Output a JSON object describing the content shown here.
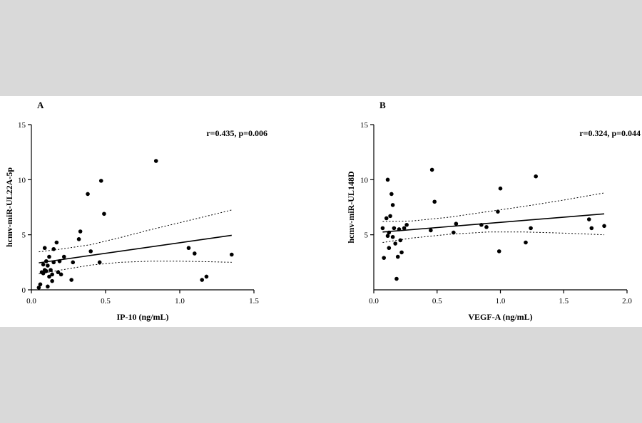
{
  "chart_data": [
    {
      "type": "scatter",
      "panel_label": "A",
      "annotation": "r=0.435, p=0.006",
      "xlabel": "IP-10 (ng/mL)",
      "ylabel": "hcmv-miR-UL22A-5p",
      "xlim": [
        0,
        1.5
      ],
      "ylim": [
        0,
        15
      ],
      "xticks": [
        0,
        0.5,
        1,
        1.5
      ],
      "xtick_labels": [
        "0.0",
        "0.5",
        "1.0",
        "1.5"
      ],
      "yticks": [
        0,
        5,
        10,
        15
      ],
      "ytick_labels": [
        "0",
        "5",
        "10",
        "15"
      ],
      "points": [
        [
          0.05,
          0.2
        ],
        [
          0.06,
          0.5
        ],
        [
          0.07,
          1.6
        ],
        [
          0.08,
          2.3
        ],
        [
          0.08,
          1.5
        ],
        [
          0.09,
          1.8
        ],
        [
          0.09,
          3.8
        ],
        [
          0.1,
          2.6
        ],
        [
          0.1,
          1.7
        ],
        [
          0.11,
          0.3
        ],
        [
          0.11,
          2.2
        ],
        [
          0.12,
          3.0
        ],
        [
          0.12,
          1.2
        ],
        [
          0.13,
          1.8
        ],
        [
          0.14,
          1.4
        ],
        [
          0.14,
          0.8
        ],
        [
          0.15,
          3.7
        ],
        [
          0.15,
          2.5
        ],
        [
          0.17,
          4.3
        ],
        [
          0.18,
          1.6
        ],
        [
          0.19,
          2.6
        ],
        [
          0.2,
          1.4
        ],
        [
          0.22,
          3.0
        ],
        [
          0.27,
          0.9
        ],
        [
          0.28,
          2.5
        ],
        [
          0.32,
          4.6
        ],
        [
          0.33,
          5.3
        ],
        [
          0.38,
          8.7
        ],
        [
          0.4,
          3.5
        ],
        [
          0.46,
          2.5
        ],
        [
          0.47,
          9.9
        ],
        [
          0.49,
          6.9
        ],
        [
          0.84,
          11.7
        ],
        [
          1.06,
          3.8
        ],
        [
          1.1,
          3.3
        ],
        [
          1.15,
          0.9
        ],
        [
          1.18,
          1.2
        ],
        [
          1.35,
          3.2
        ]
      ],
      "fit": {
        "x": [
          0.05,
          1.35
        ],
        "y": [
          2.45,
          4.95
        ]
      },
      "ci_upper": {
        "x": [
          0.05,
          0.2,
          0.4,
          0.6,
          0.8,
          1.0,
          1.2,
          1.35
        ],
        "y": [
          3.45,
          3.7,
          4.1,
          4.75,
          5.45,
          6.1,
          6.75,
          7.25
        ]
      },
      "ci_lower": {
        "x": [
          0.05,
          0.2,
          0.4,
          0.6,
          0.8,
          1.0,
          1.2,
          1.35
        ],
        "y": [
          1.45,
          1.8,
          2.25,
          2.5,
          2.6,
          2.6,
          2.55,
          2.5
        ]
      }
    },
    {
      "type": "scatter",
      "panel_label": "B",
      "annotation": "r=0.324, p=0.044",
      "xlabel": "VEGF-A (ng/mL)",
      "ylabel": "hcmv-miR-UL148D",
      "xlim": [
        0,
        2.0
      ],
      "ylim": [
        0,
        15
      ],
      "xticks": [
        0,
        0.5,
        1,
        1.5,
        2
      ],
      "xtick_labels": [
        "0.0",
        "0.5",
        "1.0",
        "1.5",
        "2.0"
      ],
      "yticks": [
        5,
        10,
        15
      ],
      "ytick_labels": [
        "5",
        "10",
        "15"
      ],
      "points": [
        [
          0.07,
          5.6
        ],
        [
          0.08,
          2.9
        ],
        [
          0.1,
          6.5
        ],
        [
          0.11,
          10.0
        ],
        [
          0.11,
          4.9
        ],
        [
          0.12,
          3.8
        ],
        [
          0.12,
          5.2
        ],
        [
          0.13,
          6.7
        ],
        [
          0.14,
          8.7
        ],
        [
          0.15,
          7.7
        ],
        [
          0.15,
          4.8
        ],
        [
          0.16,
          5.6
        ],
        [
          0.17,
          4.2
        ],
        [
          0.18,
          1.0
        ],
        [
          0.19,
          3.0
        ],
        [
          0.2,
          5.5
        ],
        [
          0.21,
          4.5
        ],
        [
          0.22,
          3.4
        ],
        [
          0.24,
          5.6
        ],
        [
          0.26,
          5.9
        ],
        [
          0.45,
          5.4
        ],
        [
          0.46,
          10.9
        ],
        [
          0.48,
          8.0
        ],
        [
          0.63,
          5.2
        ],
        [
          0.65,
          6.0
        ],
        [
          0.85,
          5.9
        ],
        [
          0.89,
          5.7
        ],
        [
          0.98,
          7.1
        ],
        [
          0.99,
          3.5
        ],
        [
          1.0,
          9.2
        ],
        [
          1.2,
          4.3
        ],
        [
          1.24,
          5.6
        ],
        [
          1.28,
          10.3
        ],
        [
          1.7,
          6.4
        ],
        [
          1.72,
          5.6
        ],
        [
          1.82,
          5.8
        ]
      ],
      "fit": {
        "x": [
          0.07,
          1.82
        ],
        "y": [
          5.25,
          6.9
        ]
      },
      "ci_upper": {
        "x": [
          0.07,
          0.3,
          0.6,
          0.9,
          1.2,
          1.5,
          1.82
        ],
        "y": [
          6.2,
          6.25,
          6.6,
          7.1,
          7.6,
          8.15,
          8.8
        ]
      },
      "ci_lower": {
        "x": [
          0.07,
          0.3,
          0.6,
          0.9,
          1.2,
          1.5,
          1.82
        ],
        "y": [
          4.3,
          4.7,
          5.05,
          5.25,
          5.25,
          5.15,
          5.0
        ]
      }
    }
  ]
}
